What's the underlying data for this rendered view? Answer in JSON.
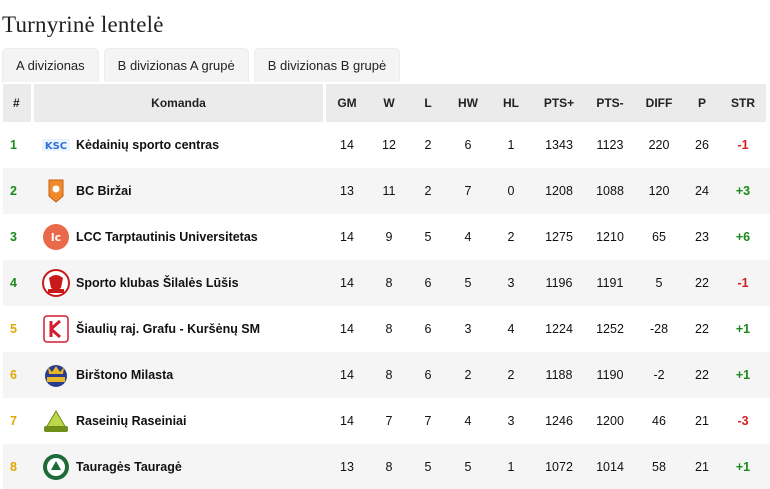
{
  "page": {
    "title": "Turnyrinė lentelė"
  },
  "tabs": [
    {
      "label": "A divizionas"
    },
    {
      "label": "B divizionas A grupė"
    },
    {
      "label": "B divizionas B grupė"
    }
  ],
  "header": {
    "num": "#",
    "team": "Komanda",
    "gm": "GM",
    "w": "W",
    "l": "L",
    "hw": "HW",
    "hl": "HL",
    "pts_plus": "PTS+",
    "pts_minus": "PTS-",
    "diff": "DIFF",
    "p": "P",
    "str": "STR"
  },
  "rows": [
    {
      "pos": "1",
      "team": "Kėdainių sporto centras",
      "gm": "14",
      "w": "12",
      "l": "2",
      "hw": "6",
      "hl": "1",
      "pts_plus": "1343",
      "pts_minus": "1123",
      "diff": "220",
      "p": "26",
      "str": "-1",
      "logo": "ksc-logo-icon"
    },
    {
      "pos": "2",
      "team": "BC Biržai",
      "gm": "13",
      "w": "11",
      "l": "2",
      "hw": "7",
      "hl": "0",
      "pts_plus": "1208",
      "pts_minus": "1088",
      "diff": "120",
      "p": "24",
      "str": "+3",
      "logo": "birzai-logo-icon"
    },
    {
      "pos": "3",
      "team": "LCC Tarptautinis Universitetas",
      "gm": "14",
      "w": "9",
      "l": "5",
      "hw": "4",
      "hl": "2",
      "pts_plus": "1275",
      "pts_minus": "1210",
      "diff": "65",
      "p": "23",
      "str": "+6",
      "logo": "lcc-logo-icon"
    },
    {
      "pos": "4",
      "team": "Sporto klubas Šilalės Lūšis",
      "gm": "14",
      "w": "8",
      "l": "6",
      "hw": "5",
      "hl": "3",
      "pts_plus": "1196",
      "pts_minus": "1191",
      "diff": "5",
      "p": "22",
      "str": "-1",
      "logo": "silales-lusis-logo-icon"
    },
    {
      "pos": "5",
      "team": "Šiaulių raj. Grafu - Kuršėnų SM",
      "gm": "14",
      "w": "8",
      "l": "6",
      "hw": "3",
      "hl": "4",
      "pts_plus": "1224",
      "pts_minus": "1252",
      "diff": "-28",
      "p": "22",
      "str": "+1",
      "logo": "grafu-logo-icon"
    },
    {
      "pos": "6",
      "team": "Birštono Milasta",
      "gm": "14",
      "w": "8",
      "l": "6",
      "hw": "2",
      "hl": "2",
      "pts_plus": "1188",
      "pts_minus": "1190",
      "diff": "-2",
      "p": "22",
      "str": "+1",
      "logo": "birstono-milasta-logo-icon"
    },
    {
      "pos": "7",
      "team": "Raseinių Raseiniai",
      "gm": "14",
      "w": "7",
      "l": "7",
      "hw": "4",
      "hl": "3",
      "pts_plus": "1246",
      "pts_minus": "1200",
      "diff": "46",
      "p": "21",
      "str": "-3",
      "logo": "raseiniai-logo-icon"
    },
    {
      "pos": "8",
      "team": "Tauragės Tauragė",
      "gm": "13",
      "w": "8",
      "l": "5",
      "hw": "5",
      "hl": "1",
      "pts_plus": "1072",
      "pts_minus": "1014",
      "diff": "58",
      "p": "21",
      "str": "+1",
      "logo": "taurage-logo-icon"
    }
  ],
  "colors": {
    "green": "#1a8a1a",
    "yellow": "#e0a800",
    "red": "#d42020",
    "header_bg": "#ebebeb",
    "alt_row": "#f5f5f5"
  }
}
